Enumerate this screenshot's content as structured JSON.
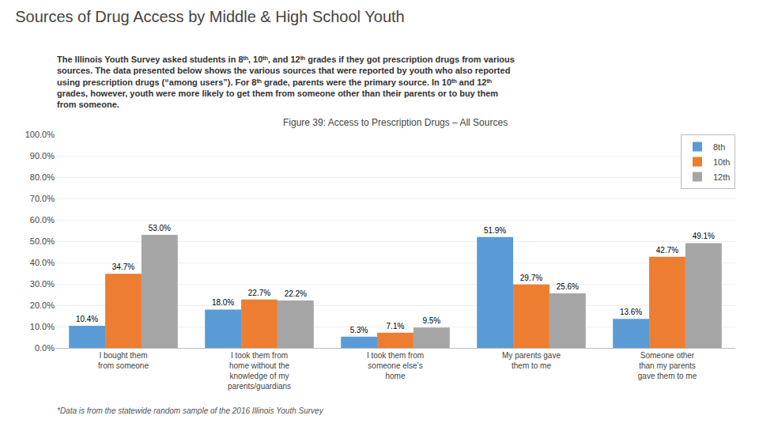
{
  "chart_data": {
    "type": "bar",
    "title": "Sources of Drug Access by Middle & High School Youth",
    "subtitle": "The Illinois Youth Survey asked students in 8ᵗʰ, 10ᵗʰ, and 12ᵗʰ grades if they got prescription drugs from various\nsources. The data presented below shows the various sources that were reported by youth who also reported\nusing prescription drugs (“among users”). For 8ᵗʰ grade, parents were the primary source. In 10ᵗʰ and 12ᵗʰ\ngrades, however, youth were more likely to get them from someone other than their parents or to buy them\nfrom someone.",
    "annotations": [
      "Figure 39: Access to Prescription Drugs – All Sources",
      "*Data is from the statewide random sample of the 2016 Illinois Youth Survey"
    ],
    "categories": [
      "I bought them\nfrom someone",
      "I took them from\nhome without the\nknowledge of my\nparents/guardians",
      "I took them from\nsomeone else’s\nhome",
      "My parents gave\nthem to me",
      "Someone other\nthan my parents\ngave them to me"
    ],
    "series": [
      {
        "name": "8th",
        "color": "#5b9bd5",
        "values": [
          10.4,
          18.0,
          5.3,
          51.9,
          13.6
        ],
        "value_labels": [
          "10.4%",
          "18.0%",
          "5.3%",
          "51.9%",
          "13.6%"
        ]
      },
      {
        "name": "10th",
        "color": "#ed7d31",
        "values": [
          34.7,
          22.7,
          7.1,
          29.7,
          42.7
        ],
        "value_labels": [
          "34.7%",
          "22.7%",
          "7.1%",
          "29.7%",
          "42.7%"
        ]
      },
      {
        "name": "12th",
        "color": "#a5a5a5",
        "values": [
          53.0,
          22.2,
          9.5,
          25.6,
          49.1
        ],
        "value_labels": [
          "53.0%",
          "22.2%",
          "9.5%",
          "25.6%",
          "49.1%"
        ]
      }
    ],
    "ylim": [
      0,
      100
    ],
    "yticks": [
      {
        "value": 0,
        "label": "0.0%"
      },
      {
        "value": 10,
        "label": "10.0%"
      },
      {
        "value": 20,
        "label": "20.0%"
      },
      {
        "value": 30,
        "label": "30.0%"
      },
      {
        "value": 40,
        "label": "40.0%"
      },
      {
        "value": 50,
        "label": "50.0%"
      },
      {
        "value": 60,
        "label": "60.0%"
      },
      {
        "value": 70,
        "label": "70.0%"
      },
      {
        "value": 80,
        "label": "80.0%"
      },
      {
        "value": 90,
        "label": "90.0%"
      },
      {
        "value": 100,
        "label": "100.0%"
      }
    ],
    "grid": true,
    "legend": "upper right",
    "data_labels": true
  }
}
